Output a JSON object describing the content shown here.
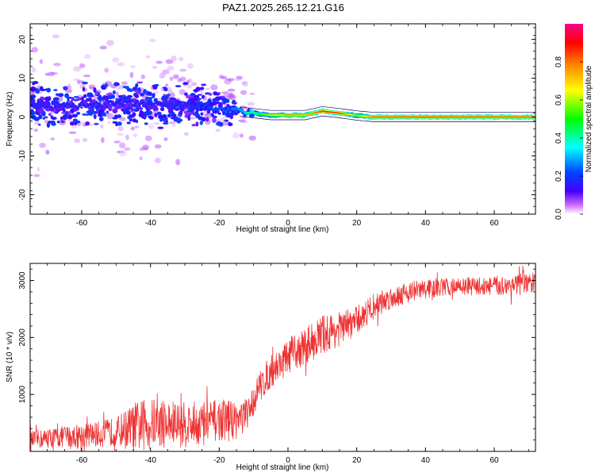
{
  "figure_title": "PAZ1.2025.265.12.21.G16",
  "chart_data": [
    {
      "type": "heatmap",
      "title": "PAZ1.2025.265.12.21.G16",
      "xlabel": "Height of straight line (km)",
      "ylabel": "Frequency (Hz)",
      "xlim": [
        -75,
        72
      ],
      "ylim": [
        -25,
        24
      ],
      "x_ticks": [
        -60,
        -40,
        -20,
        0,
        20,
        40,
        60
      ],
      "x_tick_labels": [
        "-60",
        "-40",
        "-20",
        "0",
        "20",
        "40",
        "60"
      ],
      "y_ticks": [
        -20,
        -10,
        0,
        10,
        20
      ],
      "y_tick_labels": [
        "-20",
        "-10",
        "0",
        "10",
        "20"
      ],
      "colorbar": {
        "label": "Normalized spectral amplitude",
        "range": [
          0,
          1
        ],
        "ticks": [
          0.0,
          0.2,
          0.4,
          0.6,
          0.8
        ],
        "tick_labels": [
          "0.0",
          "0.2",
          "0.4",
          "0.6",
          "0.8"
        ],
        "colors": [
          "#ffffff",
          "#cc66ff",
          "#4400ff",
          "#0044ff",
          "#00ffff",
          "#00ff00",
          "#ffff00",
          "#ff8800",
          "#ff0000",
          "#ff0088"
        ]
      },
      "ridge_frequency_hz": [
        [
          -74,
          3
        ],
        [
          -60,
          3
        ],
        [
          -45,
          3.5
        ],
        [
          -35,
          3
        ],
        [
          -25,
          3
        ],
        [
          -20,
          2
        ],
        [
          -15,
          1.5
        ],
        [
          -10,
          1
        ],
        [
          -5,
          0.5
        ],
        [
          0,
          0.5
        ],
        [
          5,
          0.5
        ],
        [
          10,
          1.5
        ],
        [
          15,
          1
        ],
        [
          20,
          0.4
        ],
        [
          25,
          0
        ],
        [
          40,
          0
        ],
        [
          60,
          0
        ],
        [
          72,
          0
        ]
      ],
      "ridge_amplitude": [
        [
          -74,
          0.25
        ],
        [
          -60,
          0.22
        ],
        [
          -45,
          0.22
        ],
        [
          -30,
          0.25
        ],
        [
          -20,
          0.3
        ],
        [
          -15,
          0.35
        ],
        [
          -10,
          0.45
        ],
        [
          -5,
          0.6
        ],
        [
          0,
          0.75
        ],
        [
          5,
          0.7
        ],
        [
          10,
          0.85
        ],
        [
          15,
          0.85
        ],
        [
          20,
          0.55
        ],
        [
          25,
          0.8
        ],
        [
          40,
          0.82
        ],
        [
          60,
          0.8
        ],
        [
          72,
          0.8
        ]
      ]
    },
    {
      "type": "line",
      "xlabel": "Height of straight line (km)",
      "ylabel": "SNR (10 * v/v)",
      "xlim": [
        -75,
        72
      ],
      "ylim": [
        0,
        3300
      ],
      "x_ticks": [
        -60,
        -40,
        -20,
        0,
        20,
        40,
        60
      ],
      "x_tick_labels": [
        "-60",
        "-40",
        "-20",
        "0",
        "20",
        "40",
        "60"
      ],
      "y_ticks": [
        1000,
        2000,
        3000
      ],
      "y_tick_labels": [
        "1000",
        "2000",
        "3000"
      ],
      "series": [
        {
          "name": "SNR",
          "color": "#ee3333",
          "trend": [
            [
              -75,
              200
            ],
            [
              -70,
              230
            ],
            [
              -65,
              260
            ],
            [
              -60,
              280
            ],
            [
              -55,
              300
            ],
            [
              -50,
              350
            ],
            [
              -45,
              420
            ],
            [
              -40,
              500
            ],
            [
              -35,
              480
            ],
            [
              -30,
              470
            ],
            [
              -25,
              500
            ],
            [
              -20,
              550
            ],
            [
              -15,
              560
            ],
            [
              -12,
              620
            ],
            [
              -10,
              900
            ],
            [
              -8,
              1150
            ],
            [
              -5,
              1400
            ],
            [
              0,
              1650
            ],
            [
              5,
              1850
            ],
            [
              10,
              2050
            ],
            [
              15,
              2150
            ],
            [
              20,
              2300
            ],
            [
              25,
              2550
            ],
            [
              30,
              2700
            ],
            [
              35,
              2800
            ],
            [
              40,
              2850
            ],
            [
              45,
              2880
            ],
            [
              50,
              2900
            ],
            [
              55,
              2900
            ],
            [
              60,
              2900
            ],
            [
              65,
              2920
            ],
            [
              70,
              2950
            ],
            [
              72,
              2950
            ]
          ],
          "noise_amplitude": [
            [
              -75,
              150
            ],
            [
              -50,
              250
            ],
            [
              -44,
              450
            ],
            [
              -30,
              400
            ],
            [
              -15,
              350
            ],
            [
              -10,
              280
            ],
            [
              0,
              300
            ],
            [
              10,
              350
            ],
            [
              20,
              250
            ],
            [
              30,
              200
            ],
            [
              50,
              150
            ],
            [
              72,
              200
            ]
          ]
        }
      ]
    }
  ]
}
